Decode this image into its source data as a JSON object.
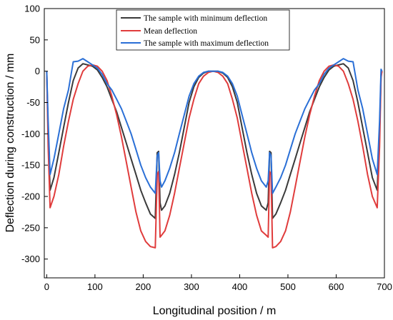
{
  "chart_data": {
    "type": "line",
    "xlabel": "Longitudinal position / m",
    "ylabel": "Deflection during construction / mm",
    "xlim": [
      -5,
      700
    ],
    "ylim": [
      -330,
      100
    ],
    "x_ticks": [
      0,
      100,
      200,
      300,
      400,
      500,
      600,
      700
    ],
    "y_ticks": [
      100,
      50,
      0,
      -50,
      -100,
      -150,
      -200,
      -250,
      -300
    ],
    "grid": false,
    "legend_position": "top-center",
    "series": [
      {
        "name": "The sample with minimum deflection",
        "color": "#3a3a3a",
        "x": [
          0,
          3,
          7,
          15,
          25,
          35,
          45,
          55,
          65,
          75,
          85,
          95,
          105,
          115,
          125,
          135,
          145,
          155,
          165,
          175,
          185,
          195,
          205,
          215,
          225,
          229,
          232,
          235,
          238,
          245,
          255,
          265,
          275,
          285,
          295,
          305,
          315,
          325,
          335,
          345,
          355,
          365,
          375,
          385,
          395,
          405,
          415,
          425,
          435,
          445,
          455,
          459,
          462,
          465,
          468,
          475,
          485,
          495,
          505,
          515,
          525,
          535,
          545,
          555,
          565,
          575,
          585,
          595,
          605,
          615,
          625,
          635,
          645,
          655,
          665,
          675,
          685,
          690,
          693,
          695
        ],
        "y": [
          0,
          -100,
          -190,
          -170,
          -130,
          -90,
          -50,
          -15,
          5,
          12,
          10,
          8,
          2,
          -10,
          -25,
          -45,
          -65,
          -90,
          -115,
          -140,
          -165,
          -190,
          -210,
          -228,
          -235,
          -130,
          -128,
          -210,
          -222,
          -215,
          -195,
          -165,
          -130,
          -90,
          -50,
          -25,
          -10,
          -3,
          0,
          0,
          0,
          -3,
          -10,
          -25,
          -50,
          -90,
          -130,
          -165,
          -195,
          -215,
          -222,
          -210,
          -128,
          -130,
          -235,
          -228,
          -210,
          -190,
          -165,
          -140,
          -115,
          -90,
          -65,
          -45,
          -25,
          -10,
          2,
          8,
          10,
          12,
          5,
          -15,
          -50,
          -90,
          -130,
          -170,
          -190,
          -100,
          -5,
          0
        ]
      },
      {
        "name": "Mean deflection",
        "color": "#e03c3c",
        "x": [
          0,
          3,
          7,
          15,
          25,
          35,
          45,
          55,
          65,
          75,
          85,
          95,
          105,
          115,
          125,
          135,
          145,
          155,
          165,
          175,
          185,
          195,
          205,
          215,
          225,
          229,
          232,
          235,
          238,
          245,
          255,
          265,
          275,
          285,
          295,
          305,
          315,
          325,
          335,
          345,
          355,
          365,
          375,
          385,
          395,
          405,
          415,
          425,
          435,
          445,
          455,
          459,
          462,
          465,
          468,
          475,
          485,
          495,
          505,
          515,
          525,
          535,
          545,
          555,
          565,
          575,
          585,
          595,
          605,
          615,
          625,
          635,
          645,
          655,
          665,
          675,
          685,
          690,
          693,
          695
        ],
        "y": [
          0,
          -120,
          -218,
          -200,
          -165,
          -120,
          -80,
          -45,
          -20,
          0,
          8,
          10,
          8,
          0,
          -15,
          -40,
          -70,
          -105,
          -145,
          -185,
          -225,
          -255,
          -272,
          -280,
          -282,
          -165,
          -160,
          -265,
          -262,
          -255,
          -230,
          -195,
          -155,
          -115,
          -75,
          -45,
          -20,
          -8,
          -2,
          0,
          -2,
          -8,
          -20,
          -45,
          -75,
          -115,
          -155,
          -195,
          -230,
          -255,
          -262,
          -265,
          -160,
          -165,
          -282,
          -280,
          -272,
          -255,
          -225,
          -185,
          -145,
          -105,
          -70,
          -40,
          -15,
          0,
          8,
          10,
          8,
          0,
          -20,
          -45,
          -80,
          -120,
          -165,
          -200,
          -218,
          -120,
          -10,
          0
        ]
      },
      {
        "name": "The sample with maximum deflection",
        "color": "#2a6fd6",
        "x": [
          0,
          3,
          7,
          15,
          25,
          35,
          45,
          55,
          65,
          75,
          85,
          95,
          105,
          115,
          125,
          135,
          145,
          155,
          165,
          175,
          185,
          195,
          205,
          215,
          225,
          229,
          232,
          235,
          238,
          245,
          255,
          265,
          275,
          285,
          295,
          305,
          315,
          325,
          335,
          345,
          355,
          365,
          375,
          385,
          395,
          405,
          415,
          425,
          435,
          445,
          455,
          459,
          462,
          465,
          468,
          475,
          485,
          495,
          505,
          515,
          525,
          535,
          545,
          555,
          565,
          575,
          585,
          595,
          605,
          615,
          625,
          635,
          645,
          655,
          665,
          675,
          685,
          690,
          693,
          695
        ],
        "y": [
          0,
          -80,
          -165,
          -140,
          -100,
          -60,
          -30,
          15,
          16,
          20,
          15,
          10,
          5,
          -5,
          -20,
          -30,
          -45,
          -60,
          -80,
          -100,
          -125,
          -150,
          -170,
          -185,
          -195,
          -135,
          -130,
          -175,
          -185,
          -175,
          -155,
          -130,
          -100,
          -70,
          -40,
          -20,
          -8,
          -2,
          0,
          0,
          0,
          -2,
          -8,
          -20,
          -40,
          -70,
          -100,
          -130,
          -155,
          -175,
          -185,
          -175,
          -130,
          -135,
          -195,
          -185,
          -170,
          -150,
          -125,
          -100,
          -80,
          -60,
          -45,
          -30,
          -20,
          -5,
          5,
          10,
          15,
          20,
          16,
          15,
          -30,
          -60,
          -100,
          -140,
          -165,
          -80,
          3,
          0
        ]
      }
    ]
  }
}
